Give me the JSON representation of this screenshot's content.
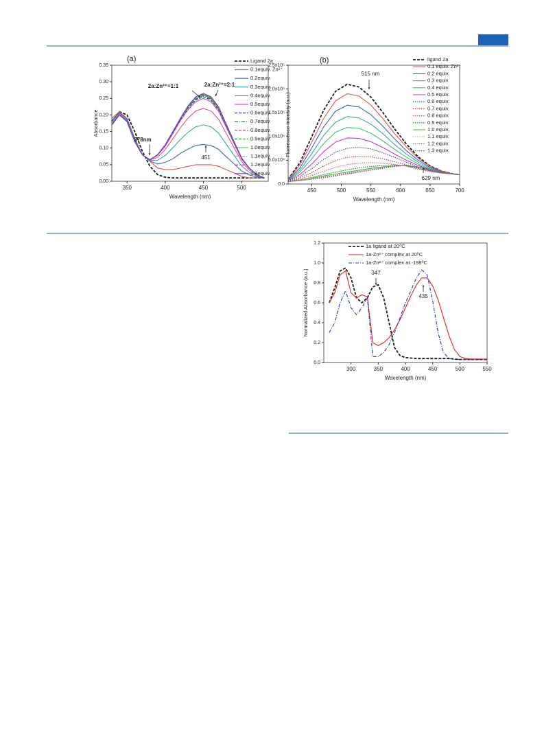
{
  "chart_data": [
    {
      "type": "line",
      "panel_label": "(a)",
      "x_label": "Wavelength (nm)",
      "y_label": "Absorbance",
      "xlim": [
        330,
        535
      ],
      "xticks": [
        350,
        400,
        450,
        500
      ],
      "ylim": [
        0,
        0.35
      ],
      "yticks": [
        {
          "value": 0,
          "label": "0.00"
        },
        {
          "value": 0.05,
          "label": "0.05"
        },
        {
          "value": 0.1,
          "label": "0.10"
        },
        {
          "value": 0.15,
          "label": "0.15"
        },
        {
          "value": 0.2,
          "label": "0.20"
        },
        {
          "value": 0.25,
          "label": "0.25"
        },
        {
          "value": 0.3,
          "label": "0.30"
        },
        {
          "value": 0.35,
          "label": "0.35"
        }
      ],
      "annotations": [
        "378nm",
        "451",
        "2a:Zn²⁺=1:1",
        "2a:Zn²⁺=2:1"
      ],
      "x": [
        330,
        340,
        350,
        360,
        370,
        380,
        390,
        400,
        410,
        420,
        430,
        440,
        450,
        460,
        470,
        480,
        490,
        500,
        510,
        520,
        530
      ],
      "series": [
        {
          "name": "Ligand 2a",
          "color": "#1a1a1a",
          "line_style": "dashed",
          "values": [
            0.18,
            0.21,
            0.2,
            0.15,
            0.09,
            0.045,
            0.02,
            0.012,
            0.01,
            0.01,
            0.01,
            0.01,
            0.01,
            0.01,
            0.01,
            0.01,
            0.01,
            0.01,
            0.01,
            0.01,
            0.01
          ]
        },
        {
          "name": "0.1equiv. Zn²⁺",
          "color": "#e8504a",
          "line_style": "solid",
          "values": [
            0.19,
            0.21,
            0.19,
            0.13,
            0.08,
            0.06,
            0.04,
            0.035,
            0.035,
            0.04,
            0.045,
            0.05,
            0.05,
            0.05,
            0.045,
            0.035,
            0.025,
            0.015,
            0.01,
            0.01,
            0.01
          ]
        },
        {
          "name": "0.2equiv.",
          "color": "#3b5fd0",
          "line_style": "solid",
          "values": [
            0.184,
            0.207,
            0.187,
            0.127,
            0.08,
            0.061,
            0.052,
            0.057,
            0.068,
            0.084,
            0.097,
            0.108,
            0.111,
            0.108,
            0.096,
            0.074,
            0.053,
            0.031,
            0.019,
            0.013,
            0.01
          ]
        },
        {
          "name": "0.3equiv.",
          "color": "#3aa6a0",
          "line_style": "solid",
          "values": [
            0.179,
            0.204,
            0.184,
            0.124,
            0.08,
            0.063,
            0.063,
            0.078,
            0.101,
            0.126,
            0.148,
            0.164,
            0.17,
            0.164,
            0.145,
            0.112,
            0.079,
            0.046,
            0.027,
            0.016,
            0.01
          ]
        },
        {
          "name": "0.4equiv.",
          "color": "#e0508a",
          "line_style": "solid",
          "values": [
            0.174,
            0.202,
            0.182,
            0.122,
            0.08,
            0.064,
            0.072,
            0.096,
            0.128,
            0.162,
            0.191,
            0.212,
            0.22,
            0.212,
            0.187,
            0.144,
            0.102,
            0.06,
            0.034,
            0.018,
            0.01
          ]
        },
        {
          "name": "0.5equiv.",
          "color": "#d030d0",
          "line_style": "solid",
          "values": [
            0.171,
            0.2,
            0.18,
            0.12,
            0.08,
            0.065,
            0.078,
            0.106,
            0.144,
            0.183,
            0.216,
            0.24,
            0.25,
            0.24,
            0.211,
            0.163,
            0.115,
            0.067,
            0.039,
            0.02,
            0.01
          ]
        },
        {
          "name": "0.6equiv.",
          "color": "#2030a0",
          "line_style": "dashed",
          "values": [
            0.17,
            0.2,
            0.18,
            0.12,
            0.08,
            0.065,
            0.08,
            0.11,
            0.148,
            0.187,
            0.221,
            0.245,
            0.255,
            0.245,
            0.216,
            0.167,
            0.118,
            0.069,
            0.04,
            0.02,
            0.01
          ]
        },
        {
          "name": "0.7equiv.",
          "color": "#1f6b2a",
          "line_style": "dashdot",
          "values": [
            0.17,
            0.2,
            0.18,
            0.12,
            0.08,
            0.065,
            0.08,
            0.11,
            0.149,
            0.188,
            0.223,
            0.248,
            0.258,
            0.248,
            0.218,
            0.168,
            0.119,
            0.07,
            0.04,
            0.02,
            0.01
          ]
        },
        {
          "name": "0.8equiv.",
          "color": "#e03050",
          "line_style": "dashed",
          "values": [
            0.17,
            0.2,
            0.18,
            0.12,
            0.08,
            0.065,
            0.08,
            0.11,
            0.15,
            0.19,
            0.225,
            0.25,
            0.26,
            0.25,
            0.22,
            0.17,
            0.12,
            0.07,
            0.04,
            0.02,
            0.01
          ]
        },
        {
          "name": "0.9equiv.",
          "color": "#2aa02a",
          "line_style": "dashed",
          "values": [
            0.17,
            0.2,
            0.18,
            0.12,
            0.08,
            0.065,
            0.08,
            0.11,
            0.15,
            0.19,
            0.226,
            0.252,
            0.262,
            0.252,
            0.221,
            0.171,
            0.12,
            0.07,
            0.04,
            0.02,
            0.01
          ]
        },
        {
          "name": "1.0equiv.",
          "color": "#30c030",
          "line_style": "solid",
          "values": [
            0.17,
            0.2,
            0.18,
            0.12,
            0.08,
            0.065,
            0.08,
            0.11,
            0.15,
            0.19,
            0.225,
            0.25,
            0.26,
            0.25,
            0.22,
            0.17,
            0.12,
            0.07,
            0.04,
            0.02,
            0.01
          ]
        },
        {
          "name": "1.1equiv.",
          "color": "#e0a020",
          "line_style": "dashdot",
          "values": [
            0.17,
            0.2,
            0.18,
            0.12,
            0.08,
            0.065,
            0.08,
            0.11,
            0.15,
            0.19,
            0.227,
            0.253,
            0.263,
            0.253,
            0.222,
            0.171,
            0.12,
            0.07,
            0.04,
            0.02,
            0.01
          ]
        },
        {
          "name": "1.2equiv.",
          "color": "#a030a0",
          "line_style": "dashdot",
          "values": [
            0.17,
            0.2,
            0.18,
            0.12,
            0.08,
            0.065,
            0.08,
            0.11,
            0.15,
            0.19,
            0.227,
            0.254,
            0.264,
            0.254,
            0.223,
            0.172,
            0.121,
            0.07,
            0.04,
            0.02,
            0.01
          ]
        },
        {
          "name": "1.3equiv.",
          "color": "#6040d0",
          "line_style": "solid",
          "values": [
            0.17,
            0.2,
            0.18,
            0.12,
            0.08,
            0.065,
            0.08,
            0.11,
            0.15,
            0.19,
            0.228,
            0.255,
            0.265,
            0.255,
            0.224,
            0.172,
            0.121,
            0.07,
            0.04,
            0.02,
            0.01
          ]
        }
      ]
    },
    {
      "type": "line",
      "panel_label": "(b)",
      "x_label": "Wavelength (nm)",
      "y_label": "Fluorescence Intensity (a.u.)",
      "xlim": [
        410,
        700
      ],
      "xticks": [
        450,
        500,
        550,
        600,
        650,
        700
      ],
      "ylim": [
        0,
        250000
      ],
      "yticks": [
        {
          "value": 0,
          "label": "0.0"
        },
        {
          "value": 50000,
          "label": "5.0x10⁴"
        },
        {
          "value": 100000,
          "label": "1.0x10⁵"
        },
        {
          "value": 150000,
          "label": "1.5x10⁵"
        },
        {
          "value": 200000,
          "label": "2.0x10⁵"
        },
        {
          "value": 250000,
          "label": "2.5x10⁵"
        }
      ],
      "annotations": [
        "515 nm",
        "629 nm"
      ],
      "x": [
        410,
        430,
        450,
        470,
        490,
        510,
        530,
        550,
        570,
        590,
        610,
        630,
        650,
        670,
        690,
        700
      ],
      "series": [
        {
          "name": "ligand 2a",
          "color": "#1a1a1a",
          "line_style": "dashed",
          "values": [
            10000,
            45000,
            100000,
            155000,
            195000,
            210000,
            204000,
            183000,
            151000,
            116000,
            84000,
            57000,
            38000,
            27000,
            21000,
            20000
          ]
        },
        {
          "name": "0.1 equiv. Zn²⁺",
          "color": "#e8504a",
          "line_style": "solid",
          "values": [
            10000,
            40000,
            88000,
            138000,
            175000,
            190000,
            185000,
            166000,
            138000,
            106000,
            78000,
            54000,
            37000,
            27000,
            21000,
            20000
          ]
        },
        {
          "name": "0.2 equiv.",
          "color": "#3b5fd0",
          "line_style": "solid",
          "values": [
            9000,
            34000,
            76000,
            120000,
            153000,
            166000,
            162000,
            146000,
            122000,
            95000,
            70000,
            50000,
            35000,
            26000,
            21000,
            20000
          ]
        },
        {
          "name": "0.3 equiv.",
          "color": "#3aa6a0",
          "line_style": "solid",
          "values": [
            9000,
            29000,
            64000,
            102000,
            130000,
            142000,
            139000,
            126000,
            106000,
            83000,
            63000,
            46000,
            33000,
            25000,
            21000,
            20000
          ]
        },
        {
          "name": "0.4 equiv.",
          "color": "#40c070",
          "line_style": "solid",
          "values": [
            8000,
            25000,
            53000,
            85000,
            109000,
            119000,
            117000,
            107000,
            91000,
            73000,
            56000,
            42000,
            31000,
            25000,
            21000,
            20000
          ]
        },
        {
          "name": "0.5 equiv.",
          "color": "#d030d0",
          "line_style": "solid",
          "values": [
            8000,
            20000,
            42000,
            68000,
            88000,
            97000,
            96000,
            89000,
            77000,
            63000,
            50000,
            39000,
            30000,
            24000,
            21000,
            20000
          ]
        },
        {
          "name": "0.6 equiv.",
          "color": "#3040b0",
          "line_style": "dotted",
          "values": [
            7000,
            16000,
            32000,
            52000,
            67000,
            75000,
            77000,
            74000,
            66000,
            56000,
            46000,
            36000,
            28000,
            23000,
            21000,
            20000
          ]
        },
        {
          "name": "0.7 equiv.",
          "color": "#b04040",
          "line_style": "dotted",
          "values": [
            7000,
            13000,
            24000,
            38000,
            49000,
            56000,
            58000,
            57000,
            53000,
            47000,
            40000,
            33000,
            27000,
            23000,
            21000,
            20000
          ]
        },
        {
          "name": "0.8 equiv.",
          "color": "#e05070",
          "line_style": "dotted",
          "values": [
            6000,
            11000,
            18000,
            27000,
            35000,
            41000,
            44000,
            45000,
            44000,
            41000,
            37000,
            31000,
            26000,
            23000,
            21000,
            20000
          ]
        },
        {
          "name": "0.9 equiv.",
          "color": "#1f6b2a",
          "line_style": "dotted",
          "values": [
            6000,
            9000,
            14000,
            20000,
            25000,
            30000,
            34000,
            37000,
            39000,
            40000,
            38000,
            33000,
            28000,
            24000,
            21000,
            20000
          ]
        },
        {
          "name": "1.0 equiv.",
          "color": "#30c030",
          "line_style": "solid",
          "values": [
            5000,
            8000,
            12000,
            17000,
            21000,
            25000,
            29000,
            33000,
            36000,
            38000,
            39000,
            35000,
            30000,
            25000,
            21000,
            20000
          ]
        },
        {
          "name": "1.1 equiv.",
          "color": "#e0a020",
          "line_style": "dotted",
          "values": [
            5000,
            8000,
            11000,
            15000,
            19000,
            23000,
            27000,
            31000,
            35000,
            38000,
            39000,
            36000,
            30000,
            25000,
            21000,
            20000
          ]
        },
        {
          "name": "1.2 equiv.",
          "color": "#c040c0",
          "line_style": "dotted",
          "values": [
            5000,
            7000,
            10000,
            14000,
            18000,
            22000,
            26000,
            30000,
            34000,
            37000,
            39000,
            36000,
            30000,
            25000,
            21000,
            20000
          ]
        },
        {
          "name": "1.3 equiv.",
          "color": "#8040b0",
          "line_style": "dotted",
          "values": [
            5000,
            7000,
            10000,
            13000,
            17000,
            21000,
            25000,
            29000,
            33000,
            37000,
            39000,
            36000,
            31000,
            25000,
            21000,
            20000
          ]
        }
      ]
    },
    {
      "type": "line",
      "x_label": "Wavelength (nm)",
      "y_label": "Normalized Absorbance (a.u.)",
      "xlim": [
        250,
        550
      ],
      "xticks": [
        300,
        350,
        400,
        450,
        500,
        550
      ],
      "ylim": [
        0,
        1.2
      ],
      "yticks": [
        {
          "value": 0,
          "label": "0.0"
        },
        0.2,
        0.4,
        0.6,
        0.8,
        {
          "value": 1,
          "label": "1.0"
        },
        1.2
      ],
      "annotations": [
        "347",
        "435"
      ],
      "x": [
        260,
        270,
        280,
        290,
        300,
        310,
        320,
        330,
        340,
        350,
        360,
        370,
        380,
        390,
        400,
        410,
        420,
        430,
        440,
        450,
        460,
        470,
        480,
        490,
        500,
        510,
        520,
        530,
        540,
        550
      ],
      "series": [
        {
          "name": "1a ligand at 20⁰C",
          "color": "#1a1a1a",
          "line_style": "dashed",
          "values": [
            0.6,
            0.75,
            0.92,
            0.95,
            0.85,
            0.65,
            0.6,
            0.65,
            0.76,
            0.78,
            0.65,
            0.4,
            0.15,
            0.07,
            0.05,
            0.045,
            0.04,
            0.04,
            0.04,
            0.04,
            0.04,
            0.04,
            0.04,
            0.035,
            0.03,
            0.03,
            0.03,
            0.03,
            0.03,
            0.03
          ]
        },
        {
          "name": "1a-Zn²⁺ complex at 20⁰C",
          "color": "#e02020",
          "line_style": "solid",
          "values": [
            0.6,
            0.7,
            0.88,
            0.92,
            0.7,
            0.65,
            0.68,
            0.66,
            0.2,
            0.17,
            0.2,
            0.25,
            0.33,
            0.43,
            0.55,
            0.67,
            0.78,
            0.85,
            0.85,
            0.77,
            0.63,
            0.45,
            0.27,
            0.13,
            0.06,
            0.04,
            0.035,
            0.035,
            0.035,
            0.035
          ]
        },
        {
          "name": "1a-Zn²⁺ complex at -198⁰C",
          "color": "#2030c0",
          "line_style": "dashdot",
          "values": [
            0.3,
            0.4,
            0.6,
            0.72,
            0.55,
            0.48,
            0.55,
            0.65,
            0.06,
            0.06,
            0.1,
            0.18,
            0.3,
            0.45,
            0.6,
            0.72,
            0.85,
            0.93,
            0.88,
            0.62,
            0.3,
            0.1,
            0.04,
            0.03,
            0.03,
            0.03,
            0.03,
            0.03,
            0.03,
            0.03
          ]
        }
      ]
    }
  ]
}
